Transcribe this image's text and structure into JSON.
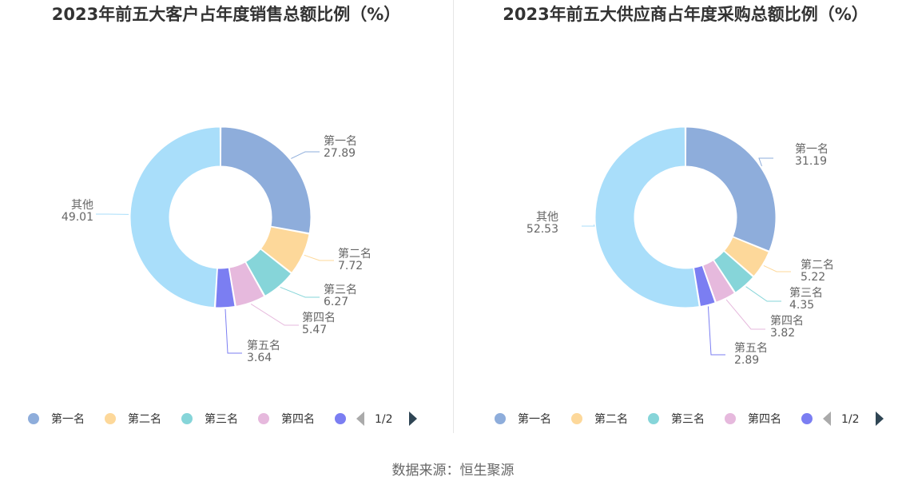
{
  "chart_data": [
    {
      "type": "pie",
      "title": "2023年前五大客户占年度销售总额比例（%）",
      "categories": [
        "第一名",
        "第二名",
        "第三名",
        "第四名",
        "第五名",
        "其他"
      ],
      "values": [
        27.89,
        7.72,
        6.27,
        5.47,
        3.64,
        49.01
      ],
      "value_labels": [
        "27.89",
        "7.72",
        "6.27",
        "5.47",
        "3.64",
        "49.01"
      ],
      "colors": [
        "#8eaddb",
        "#fdd89a",
        "#86d5d9",
        "#e6b9dd",
        "#7b7ef2",
        "#a9defa"
      ],
      "legend": {
        "position": "bottom",
        "visible_items": [
          "第一名",
          "第二名",
          "第三名",
          "第四名"
        ],
        "page": "1/2"
      }
    },
    {
      "type": "pie",
      "title": "2023年前五大供应商占年度采购总额比例（%）",
      "categories": [
        "第一名",
        "第二名",
        "第三名",
        "第四名",
        "第五名",
        "其他"
      ],
      "values": [
        31.19,
        5.22,
        4.35,
        3.82,
        2.89,
        52.53
      ],
      "value_labels": [
        "31.19",
        "5.22",
        "4.35",
        "3.82",
        "2.89",
        "52.53"
      ],
      "colors": [
        "#8eaddb",
        "#fdd89a",
        "#86d5d9",
        "#e6b9dd",
        "#7b7ef2",
        "#a9defa"
      ],
      "legend": {
        "position": "bottom",
        "visible_items": [
          "第一名",
          "第二名",
          "第三名",
          "第四名"
        ],
        "page": "1/2"
      }
    }
  ],
  "footer": {
    "source": "数据来源：恒生聚源"
  }
}
